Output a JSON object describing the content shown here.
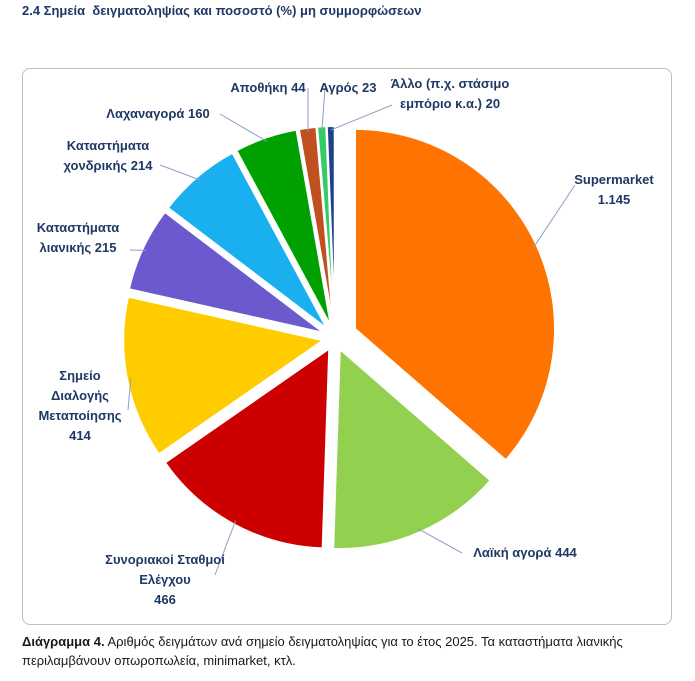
{
  "heading": "2.4 Σημεία  δειγματοληψίας και ποσοστό (%) μη συμμορφώσεων",
  "chart_data": {
    "type": "pie",
    "categories": [
      "Supermarket",
      "Λαϊκή αγορά",
      "Συνοριακοί Σταθμοί Ελέγχου",
      "Σημείο Διαλογής Μεταποίησης",
      "Καταστήματα λιανικής",
      "Καταστήματα χονδρικής",
      "Λαχαναγορά",
      "Αποθήκη",
      "Αγρός",
      "Άλλο (π.χ. στάσιμο εμπόριο κ.α.)"
    ],
    "values": [
      1145,
      444,
      466,
      414,
      215,
      214,
      160,
      44,
      23,
      20
    ],
    "value_labels": [
      "1.145",
      "444",
      "466",
      "414",
      "215",
      "214",
      "160",
      "44",
      "23",
      "20"
    ],
    "colors": [
      "#ff7300",
      "#92d050",
      "#cc0000",
      "#ffcc00",
      "#6a5acd",
      "#1ab0f0",
      "#00a000",
      "#c0501f",
      "#33cc66",
      "#1f3f8f"
    ]
  },
  "caption": {
    "label": "Διάγραμμα 4.",
    "text": "Αριθμός δειγμάτων ανά σημείο δειγματοληψίας για το έτος 2025. Τα καταστήματα λιανικής περιλαμβάνουν οπωροπωλεία, minimarket, κτλ."
  }
}
